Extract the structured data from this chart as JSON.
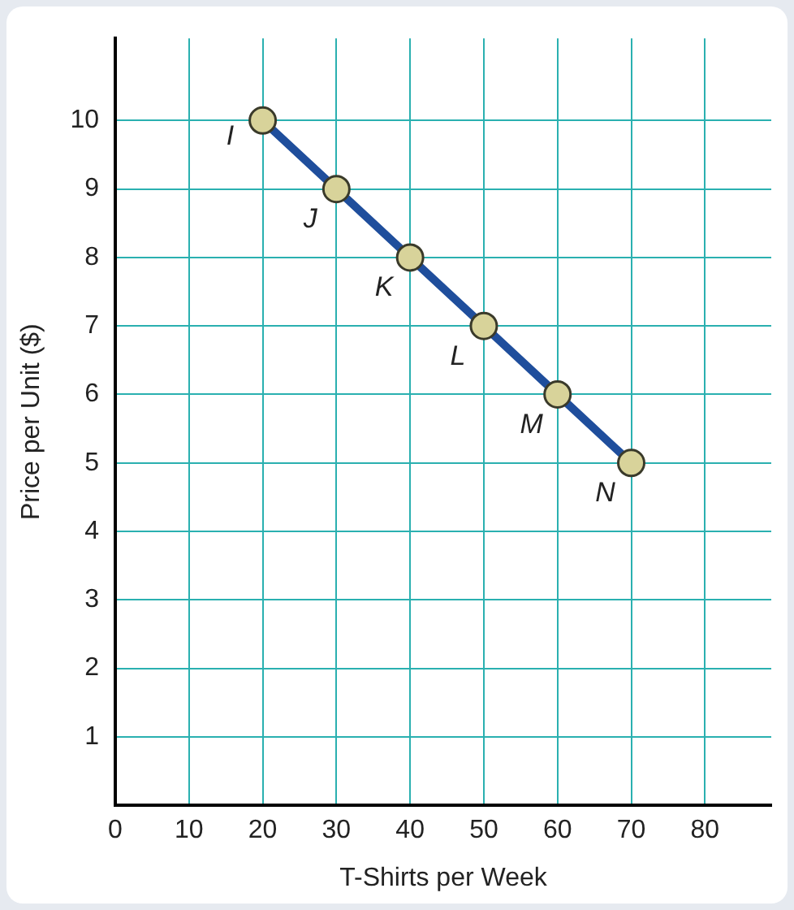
{
  "chart_data": {
    "type": "line",
    "xlabel": "T-Shirts per Week",
    "ylabel": "Price per Unit ($)",
    "x": [
      20,
      30,
      40,
      50,
      60,
      70
    ],
    "series": [
      {
        "color": "#1f4e9c",
        "values": [
          10,
          9,
          8,
          7,
          6,
          5
        ]
      }
    ],
    "xlim": [
      0,
      89
    ],
    "xticks": [
      0,
      10,
      20,
      30,
      40,
      50,
      60,
      70,
      80
    ],
    "ylim": [
      0,
      11.2
    ],
    "yticks": [
      1,
      2,
      3,
      4,
      5,
      6,
      7,
      8,
      9,
      10
    ],
    "grid": true,
    "legend": false,
    "marker": "circle",
    "line_style": "solid",
    "annotations": [
      {
        "text": "I",
        "x": 20,
        "y": 10
      },
      {
        "text": "J",
        "x": 30,
        "y": 9
      },
      {
        "text": "K",
        "x": 40,
        "y": 8
      },
      {
        "text": "L",
        "x": 50,
        "y": 7
      },
      {
        "text": "M",
        "x": 60,
        "y": 6
      },
      {
        "text": "N",
        "x": 70,
        "y": 5
      }
    ]
  }
}
